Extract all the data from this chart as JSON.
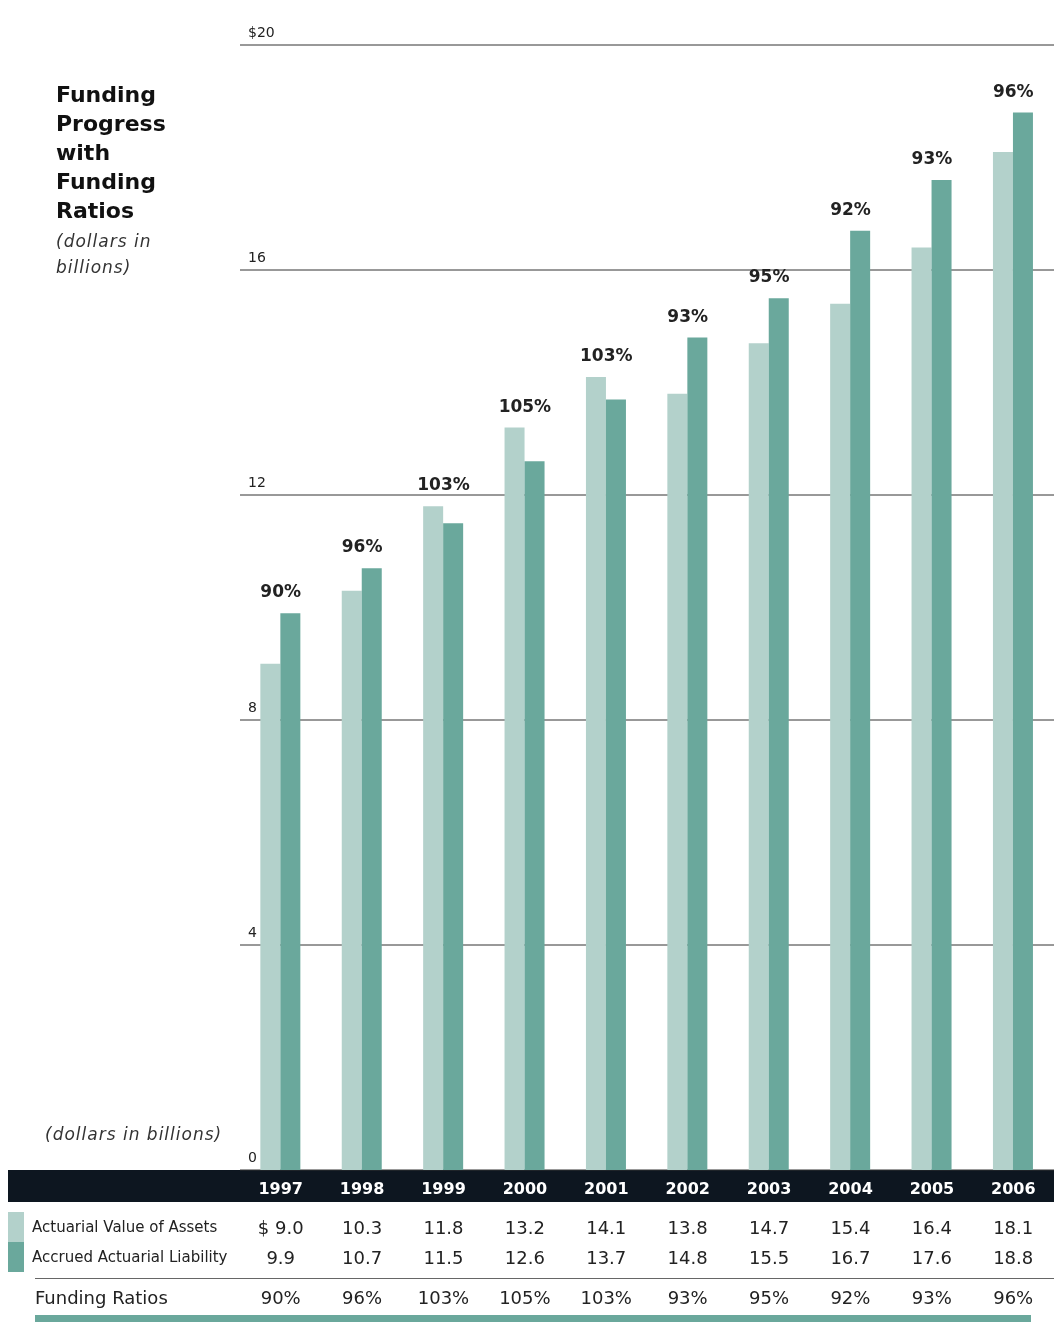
{
  "chart_data": {
    "type": "bar",
    "title": "Funding Progress with Funding Ratios",
    "subtitle": "(dollars in billions)",
    "categories": [
      "1997",
      "1998",
      "1999",
      "2000",
      "2001",
      "2002",
      "2003",
      "2004",
      "2005",
      "2006"
    ],
    "series": [
      {
        "name": "Actuarial Value of Assets",
        "color": "#b3d1cb",
        "values": [
          9.0,
          10.3,
          11.8,
          13.2,
          14.1,
          13.8,
          14.7,
          15.4,
          16.4,
          18.1
        ],
        "value_labels": [
          "$ 9.0",
          "10.3",
          "11.8",
          "13.2",
          "14.1",
          "13.8",
          "14.7",
          "15.4",
          "16.4",
          "18.1"
        ]
      },
      {
        "name": "Accrued Actuarial Liability",
        "color": "#6aa89c",
        "values": [
          9.9,
          10.7,
          11.5,
          12.6,
          13.7,
          14.8,
          15.5,
          16.7,
          17.6,
          18.8
        ],
        "value_labels": [
          "9.9",
          "10.7",
          "11.5",
          "12.6",
          "13.7",
          "14.8",
          "15.5",
          "16.7",
          "17.6",
          "18.8"
        ]
      }
    ],
    "ylim": [
      0,
      20
    ],
    "yticks": [
      {
        "value": 20,
        "label": "$20"
      },
      16,
      12,
      8,
      4,
      0
    ],
    "grid": "y",
    "legend": "bottom",
    "annotations": [
      "(dollars in billions)",
      "Funding Ratios",
      "90%",
      "96%",
      "103%",
      "105%",
      "103%",
      "93%",
      "95%",
      "92%",
      "93%",
      "96%",
      {
        "text": "90%",
        "x": "1997",
        "y": 9.9
      },
      {
        "text": "96%",
        "x": "1998",
        "y": 10.7
      },
      {
        "text": "103%",
        "x": "1999",
        "y": 11.8
      },
      {
        "text": "105%",
        "x": "2000",
        "y": 13.2
      },
      {
        "text": "103%",
        "x": "2001",
        "y": 14.1
      },
      {
        "text": "93%",
        "x": "2002",
        "y": 14.8
      },
      {
        "text": "95%",
        "x": "2003",
        "y": 15.5
      },
      {
        "text": "92%",
        "x": "2004",
        "y": 16.7
      },
      {
        "text": "93%",
        "x": "2005",
        "y": 17.6
      },
      {
        "text": "96%",
        "x": "2006",
        "y": 18.8
      }
    ]
  }
}
